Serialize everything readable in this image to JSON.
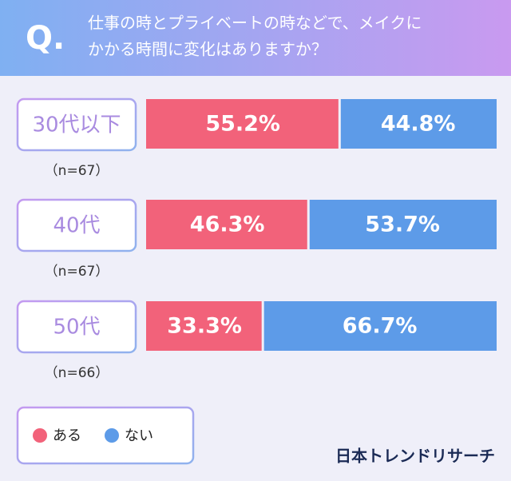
{
  "chart_data": {
    "type": "stacked_bar_100",
    "question_mark": "Q.",
    "title": [
      "仕事の時とプライベートの時などで、メイクに",
      "かかる時間に変化はありますか？"
    ],
    "categories": [
      "30代以下",
      "40代",
      "50代"
    ],
    "sample_sizes": [
      "（n=67）",
      "（n=67）",
      "（n=66）"
    ],
    "xlim": [
      0,
      100
    ],
    "series": [
      {
        "name": "ある",
        "color": "#f2627a",
        "values": [
          55.2,
          46.3,
          33.3
        ],
        "value_labels": [
          "55.2%",
          "46.3%",
          "33.3%"
        ]
      },
      {
        "name": "ない",
        "color": "#5d9be8",
        "values": [
          44.8,
          53.7,
          66.7
        ],
        "value_labels": [
          "44.8%",
          "53.7%",
          "66.7%"
        ]
      }
    ],
    "source": "日本トレンドリサーチ"
  }
}
